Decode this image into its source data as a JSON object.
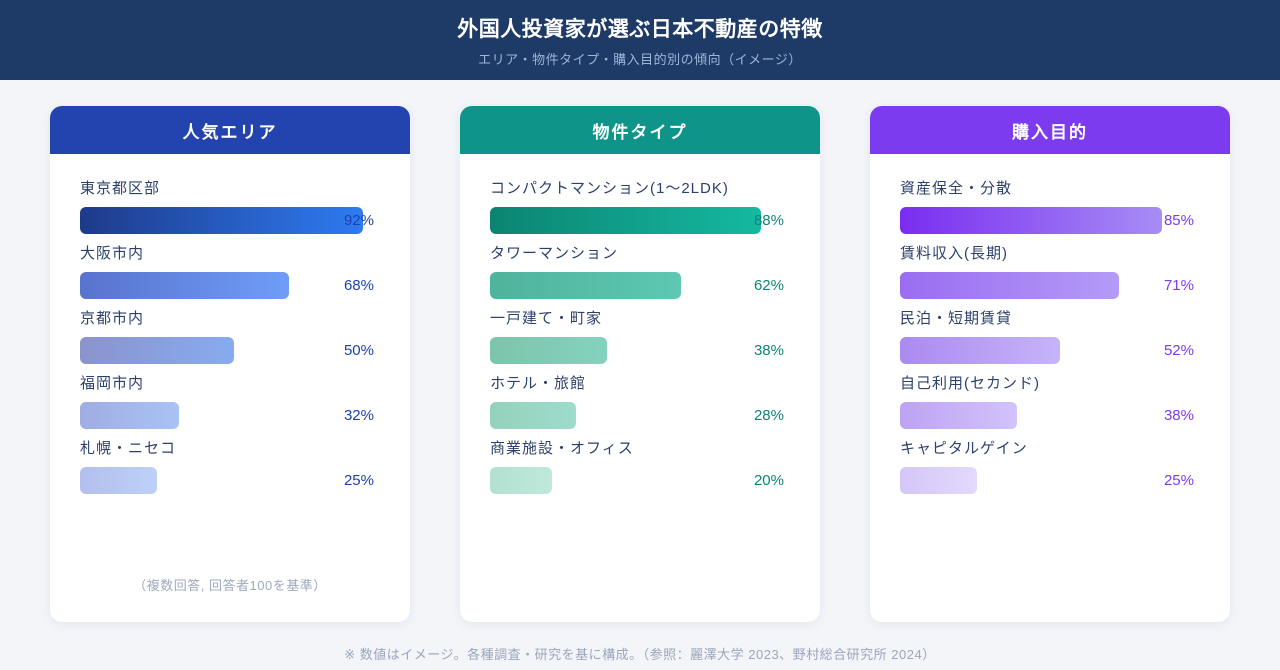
{
  "header": {
    "title": "外国人投資家が選ぶ日本不動産の特徴",
    "subtitle": "エリア・物件タイプ・購入目的別の傾向（イメージ）"
  },
  "panels": [
    {
      "title": "人気エリア",
      "header_color": "#2343ae",
      "value_color": "#1e40af",
      "note": "（複数回答, 回答者100を基準）",
      "items": [
        {
          "label": "東京都区部",
          "value": 92,
          "value_label": "92%",
          "bar_from": "#1e3a8a",
          "bar_to": "#2e7bf2"
        },
        {
          "label": "大阪市内",
          "value": 68,
          "value_label": "68%",
          "bar_from": "#5873cd",
          "bar_to": "#6f9df8"
        },
        {
          "label": "京都市内",
          "value": 50,
          "value_label": "50%",
          "bar_from": "#8a94cc",
          "bar_to": "#87abf0"
        },
        {
          "label": "福岡市内",
          "value": 32,
          "value_label": "32%",
          "bar_from": "#9fade3",
          "bar_to": "#a9c2f4"
        },
        {
          "label": "札幌・ニセコ",
          "value": 25,
          "value_label": "25%",
          "bar_from": "#b3bfec",
          "bar_to": "#bdd1f8"
        }
      ]
    },
    {
      "title": "物件タイプ",
      "header_color": "#0e9488",
      "value_color": "#0c8578",
      "note": "",
      "items": [
        {
          "label": "コンパクトマンション(1〜2LDK)",
          "value": 88,
          "value_label": "88%",
          "bar_from": "#0b8472",
          "bar_to": "#15b9a0"
        },
        {
          "label": "タワーマンション",
          "value": 62,
          "value_label": "62%",
          "bar_from": "#4fb39b",
          "bar_to": "#5ec8b2"
        },
        {
          "label": "一戸建て・町家",
          "value": 38,
          "value_label": "38%",
          "bar_from": "#7dc4ab",
          "bar_to": "#84d2bf"
        },
        {
          "label": "ホテル・旅館",
          "value": 28,
          "value_label": "28%",
          "bar_from": "#95d2bd",
          "bar_to": "#9cdccb"
        },
        {
          "label": "商業施設・オフィス",
          "value": 20,
          "value_label": "20%",
          "bar_from": "#b2e1d1",
          "bar_to": "#bfe9da"
        }
      ]
    },
    {
      "title": "購入目的",
      "header_color": "#7c3bee",
      "value_color": "#7d3bee",
      "note": "",
      "items": [
        {
          "label": "資産保全・分散",
          "value": 85,
          "value_label": "85%",
          "bar_from": "#7a2cf0",
          "bar_to": "#a78df6"
        },
        {
          "label": "賃料収入(長期)",
          "value": 71,
          "value_label": "71%",
          "bar_from": "#9a6cf2",
          "bar_to": "#b49bf7"
        },
        {
          "label": "民泊・短期賃貸",
          "value": 52,
          "value_label": "52%",
          "bar_from": "#ab8af1",
          "bar_to": "#c6b4f9"
        },
        {
          "label": "自己利用(セカンド)",
          "value": 38,
          "value_label": "38%",
          "bar_from": "#bda3f3",
          "bar_to": "#d2c3fa"
        },
        {
          "label": "キャピタルゲイン",
          "value": 25,
          "value_label": "25%",
          "bar_from": "#d4c6f8",
          "bar_to": "#e3dafc"
        }
      ]
    }
  ],
  "footer": {
    "note": "※ 数値はイメージ。各種調査・研究を基に構成。（参照：麗澤大学 2023、野村総合研究所 2024）"
  },
  "chart_data": [
    {
      "type": "bar",
      "orientation": "horizontal",
      "title": "人気エリア",
      "categories": [
        "東京都区部",
        "大阪市内",
        "京都市内",
        "福岡市内",
        "札幌・ニセコ"
      ],
      "values": [
        92,
        68,
        50,
        32,
        25
      ],
      "xlabel": "",
      "ylabel": "",
      "xlim": [
        0,
        100
      ],
      "value_suffix": "%",
      "annotation": "（複数回答, 回答者100を基準）",
      "grid": false,
      "legend": "none"
    },
    {
      "type": "bar",
      "orientation": "horizontal",
      "title": "物件タイプ",
      "categories": [
        "コンパクトマンション(1〜2LDK)",
        "タワーマンション",
        "一戸建て・町家",
        "ホテル・旅館",
        "商業施設・オフィス"
      ],
      "values": [
        88,
        62,
        38,
        28,
        20
      ],
      "xlabel": "",
      "ylabel": "",
      "xlim": [
        0,
        100
      ],
      "value_suffix": "%",
      "grid": false,
      "legend": "none"
    },
    {
      "type": "bar",
      "orientation": "horizontal",
      "title": "購入目的",
      "categories": [
        "資産保全・分散",
        "賃料収入(長期)",
        "民泊・短期賃貸",
        "自己利用(セカンド)",
        "キャピタルゲイン"
      ],
      "values": [
        85,
        71,
        52,
        38,
        25
      ],
      "xlabel": "",
      "ylabel": "",
      "xlim": [
        0,
        100
      ],
      "value_suffix": "%",
      "grid": false,
      "legend": "none"
    }
  ]
}
